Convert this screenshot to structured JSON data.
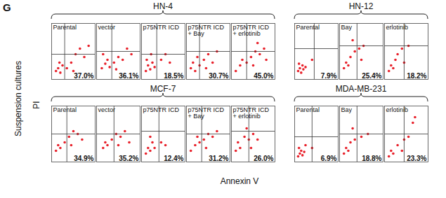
{
  "panel_label": "G",
  "y_title": "Suspension cultures",
  "y_label": "PI",
  "x_label": "Annexin V",
  "chart_data": [
    {
      "type": "scatter",
      "group": "HN-4",
      "title": "Parental",
      "annotation": "37.0%",
      "color": "#e8202a",
      "tick_labels": false,
      "xlim": [
        0,
        100
      ],
      "ylim": [
        0,
        100
      ],
      "gate": [
        30,
        45
      ],
      "x": [
        10,
        15,
        20,
        25,
        18,
        35,
        45,
        55,
        65,
        75,
        85,
        50
      ],
      "values": [
        15,
        20,
        12,
        25,
        30,
        20,
        30,
        45,
        55,
        40,
        60,
        15
      ]
    },
    {
      "type": "scatter",
      "group": "HN-4",
      "title": "vector",
      "annotation": "36.1%",
      "color": "#e8202a",
      "tick_labels": false,
      "xlim": [
        0,
        100
      ],
      "ylim": [
        0,
        100
      ],
      "gate": [
        35,
        50
      ],
      "x": [
        12,
        20,
        15,
        25,
        30,
        40,
        50,
        60,
        70,
        80,
        45
      ],
      "values": [
        20,
        28,
        45,
        35,
        22,
        30,
        40,
        35,
        55,
        45,
        18
      ]
    },
    {
      "type": "scatter",
      "group": "HN-4",
      "title": "p75NTR ICD",
      "annotation": "18.5%",
      "color": "#e8202a",
      "tick_labels": false,
      "xlim": [
        0,
        100
      ],
      "ylim": [
        0,
        100
      ],
      "gate": [
        35,
        45
      ],
      "x": [
        10,
        15,
        20,
        25,
        12,
        30,
        45,
        55,
        65,
        22
      ],
      "values": [
        15,
        25,
        18,
        30,
        35,
        22,
        35,
        45,
        30,
        45
      ]
    },
    {
      "type": "scatter",
      "group": "HN-4",
      "title": "p75NTR ICD\n+ Bay",
      "annotation": "30.7%",
      "color": "#e8202a",
      "tick_labels": false,
      "xlim": [
        0,
        100
      ],
      "ylim": [
        0,
        100
      ],
      "gate": [
        30,
        50
      ],
      "x": [
        10,
        15,
        20,
        25,
        30,
        40,
        50,
        60,
        70,
        45
      ],
      "values": [
        20,
        30,
        15,
        40,
        25,
        35,
        45,
        30,
        50,
        20
      ]
    },
    {
      "type": "scatter",
      "group": "HN-4",
      "title": "p75NTR ICD\n+ erlotinib",
      "annotation": "45.0%",
      "color": "#e8202a",
      "tick_labels": false,
      "xlim": [
        0,
        100
      ],
      "ylim": [
        0,
        100
      ],
      "gate": [
        35,
        50
      ],
      "x": [
        10,
        20,
        25,
        35,
        45,
        55,
        65,
        75,
        80,
        50,
        60
      ],
      "values": [
        15,
        25,
        35,
        30,
        40,
        50,
        45,
        55,
        35,
        25,
        65
      ]
    },
    {
      "type": "scatter",
      "group": "HN-12",
      "title": "Parental",
      "annotation": "7.9%",
      "color": "#e8202a",
      "tick_labels": false,
      "xlim": [
        0,
        100
      ],
      "ylim": [
        0,
        100
      ],
      "gate": [
        45,
        55
      ],
      "x": [
        8,
        12,
        15,
        18,
        10,
        20,
        25,
        40
      ],
      "values": [
        15,
        20,
        12,
        25,
        28,
        18,
        22,
        35
      ]
    },
    {
      "type": "scatter",
      "group": "HN-12",
      "title": "Bay",
      "annotation": "25.4%",
      "color": "#e8202a",
      "tick_labels": false,
      "xlim": [
        0,
        100
      ],
      "ylim": [
        0,
        100
      ],
      "gate": [
        40,
        60
      ],
      "x": [
        10,
        15,
        20,
        25,
        35,
        45,
        55,
        30,
        50
      ],
      "values": [
        20,
        30,
        25,
        40,
        50,
        55,
        60,
        70,
        35
      ]
    },
    {
      "type": "scatter",
      "group": "HN-12",
      "title": "erlotinib",
      "annotation": "18.2%",
      "color": "#e8202a",
      "tick_labels": false,
      "xlim": [
        0,
        100
      ],
      "ylim": [
        0,
        100
      ],
      "gate": [
        45,
        60
      ],
      "x": [
        10,
        15,
        20,
        25,
        30,
        40,
        55,
        45
      ],
      "values": [
        15,
        25,
        20,
        35,
        45,
        55,
        60,
        30
      ]
    },
    {
      "type": "scatter",
      "group": "MCF-7",
      "title": "Parental",
      "annotation": "34.9%",
      "color": "#e8202a",
      "tick_labels": false,
      "xlim": [
        0,
        100
      ],
      "ylim": [
        0,
        100
      ],
      "gate": [
        35,
        50
      ],
      "x": [
        10,
        15,
        20,
        30,
        40,
        50,
        60,
        45,
        70
      ],
      "values": [
        20,
        30,
        25,
        35,
        45,
        55,
        50,
        30,
        40
      ]
    },
    {
      "type": "scatter",
      "group": "MCF-7",
      "title": "vector",
      "annotation": "35.2%",
      "color": "#e8202a",
      "tick_labels": false,
      "xlim": [
        0,
        100
      ],
      "ylim": [
        0,
        100
      ],
      "gate": [
        40,
        50
      ],
      "x": [
        15,
        20,
        25,
        35,
        45,
        55,
        65,
        50,
        75
      ],
      "values": [
        25,
        35,
        30,
        40,
        50,
        45,
        55,
        30,
        35
      ]
    },
    {
      "type": "scatter",
      "group": "MCF-7",
      "title": "p75NTR ICD",
      "annotation": "12.4%",
      "color": "#e8202a",
      "tick_labels": false,
      "xlim": [
        0,
        100
      ],
      "ylim": [
        0,
        100
      ],
      "gate": [
        40,
        55
      ],
      "x": [
        10,
        15,
        20,
        25,
        30,
        20,
        45,
        55
      ],
      "values": [
        15,
        25,
        20,
        35,
        25,
        45,
        35,
        30
      ]
    },
    {
      "type": "scatter",
      "group": "MCF-7",
      "title": "p75NTR ICD\n+ Bay",
      "annotation": "31.2%",
      "color": "#e8202a",
      "tick_labels": false,
      "xlim": [
        0,
        100
      ],
      "ylim": [
        0,
        100
      ],
      "gate": [
        35,
        50
      ],
      "x": [
        10,
        20,
        25,
        30,
        40,
        50,
        60,
        70,
        45
      ],
      "values": [
        20,
        30,
        45,
        35,
        40,
        50,
        45,
        55,
        25
      ]
    },
    {
      "type": "scatter",
      "group": "MCF-7",
      "title": "p75NTR ICD\n+ erlotinib",
      "annotation": "26.0%",
      "color": "#e8202a",
      "tick_labels": false,
      "xlim": [
        0,
        100
      ],
      "ylim": [
        0,
        100
      ],
      "gate": [
        40,
        55
      ],
      "x": [
        10,
        15,
        20,
        30,
        40,
        50,
        60,
        45,
        35
      ],
      "values": [
        20,
        35,
        25,
        45,
        40,
        50,
        40,
        25,
        60
      ]
    },
    {
      "type": "scatter",
      "group": "MDA-MB-231",
      "title": "Parental",
      "annotation": "6.9%",
      "color": "#e8202a",
      "tick_labels": false,
      "xlim": [
        0,
        100
      ],
      "ylim": [
        0,
        100
      ],
      "gate": [
        40,
        45
      ],
      "x": [
        8,
        12,
        15,
        18,
        10,
        22,
        25,
        40
      ],
      "values": [
        10,
        15,
        20,
        12,
        25,
        18,
        30,
        25
      ]
    },
    {
      "type": "scatter",
      "group": "MDA-MB-231",
      "title": "Bay",
      "annotation": "18.8%",
      "color": "#e8202a",
      "tick_labels": false,
      "xlim": [
        0,
        100
      ],
      "ylim": [
        0,
        100
      ],
      "gate": [
        40,
        50
      ],
      "x": [
        10,
        15,
        20,
        25,
        35,
        50,
        65,
        30
      ],
      "values": [
        15,
        25,
        20,
        35,
        40,
        45,
        50,
        60
      ]
    },
    {
      "type": "scatter",
      "group": "MDA-MB-231",
      "title": "erlotinib",
      "annotation": "23.3%",
      "color": "#e8202a",
      "tick_labels": false,
      "xlim": [
        0,
        100
      ],
      "ylim": [
        0,
        100
      ],
      "gate": [
        45,
        50
      ],
      "x": [
        10,
        15,
        20,
        30,
        45,
        55,
        65,
        70,
        40
      ],
      "values": [
        10,
        20,
        15,
        30,
        40,
        45,
        70,
        80,
        20
      ]
    }
  ]
}
